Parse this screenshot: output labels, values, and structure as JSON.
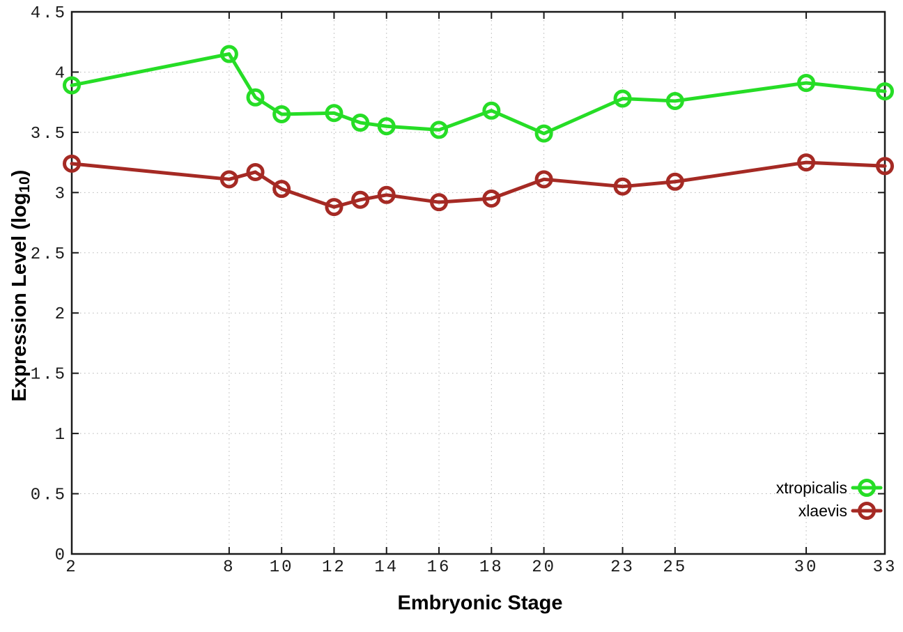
{
  "figure": {
    "xlabel": "Embryonic Stage",
    "ylabel_prefix": "Expression Level (log",
    "ylabel_sub": "10",
    "ylabel_suffix": ")"
  },
  "chart_data": {
    "type": "line",
    "title": "",
    "xlabel": "Embryonic Stage",
    "ylabel": "Expression Level (log10)",
    "x": [
      2,
      8,
      9,
      10,
      12,
      13,
      14,
      16,
      18,
      20,
      23,
      25,
      30,
      33
    ],
    "series": [
      {
        "name": "xtropicalis",
        "color": "#26dd26",
        "values": [
          3.89,
          4.15,
          3.79,
          3.65,
          3.66,
          3.58,
          3.55,
          3.52,
          3.68,
          3.49,
          3.78,
          3.76,
          3.91,
          3.84
        ]
      },
      {
        "name": "xlaevis",
        "color": "#a52a24",
        "values": [
          3.24,
          3.11,
          3.17,
          3.03,
          2.88,
          2.94,
          2.98,
          2.92,
          2.95,
          3.11,
          3.05,
          3.09,
          3.25,
          3.22
        ]
      }
    ],
    "x_ticks": [
      2,
      8,
      10,
      12,
      14,
      16,
      18,
      20,
      23,
      25,
      30,
      33
    ],
    "x_tick_labels": [
      "2",
      "8",
      "10",
      "12",
      "14",
      "16",
      "18",
      "20",
      "23",
      "25",
      "30",
      "33"
    ],
    "y_ticks": [
      0,
      0.5,
      1,
      1.5,
      2,
      2.5,
      3,
      3.5,
      4,
      4.5
    ],
    "y_tick_labels": [
      "0",
      "0.5",
      "1",
      "1.5",
      "2",
      "2.5",
      "3",
      "3.5",
      "4",
      "4.5"
    ],
    "xlim": [
      2,
      33
    ],
    "ylim": [
      0,
      4.5
    ],
    "grid": true,
    "marker": "open-circle",
    "legend_position": "bottom-right",
    "colors": {
      "background": "#ffffff",
      "axis": "#1a1a1a",
      "grid": "#b5b5b5",
      "tick_text": "#1a1a1a"
    }
  }
}
